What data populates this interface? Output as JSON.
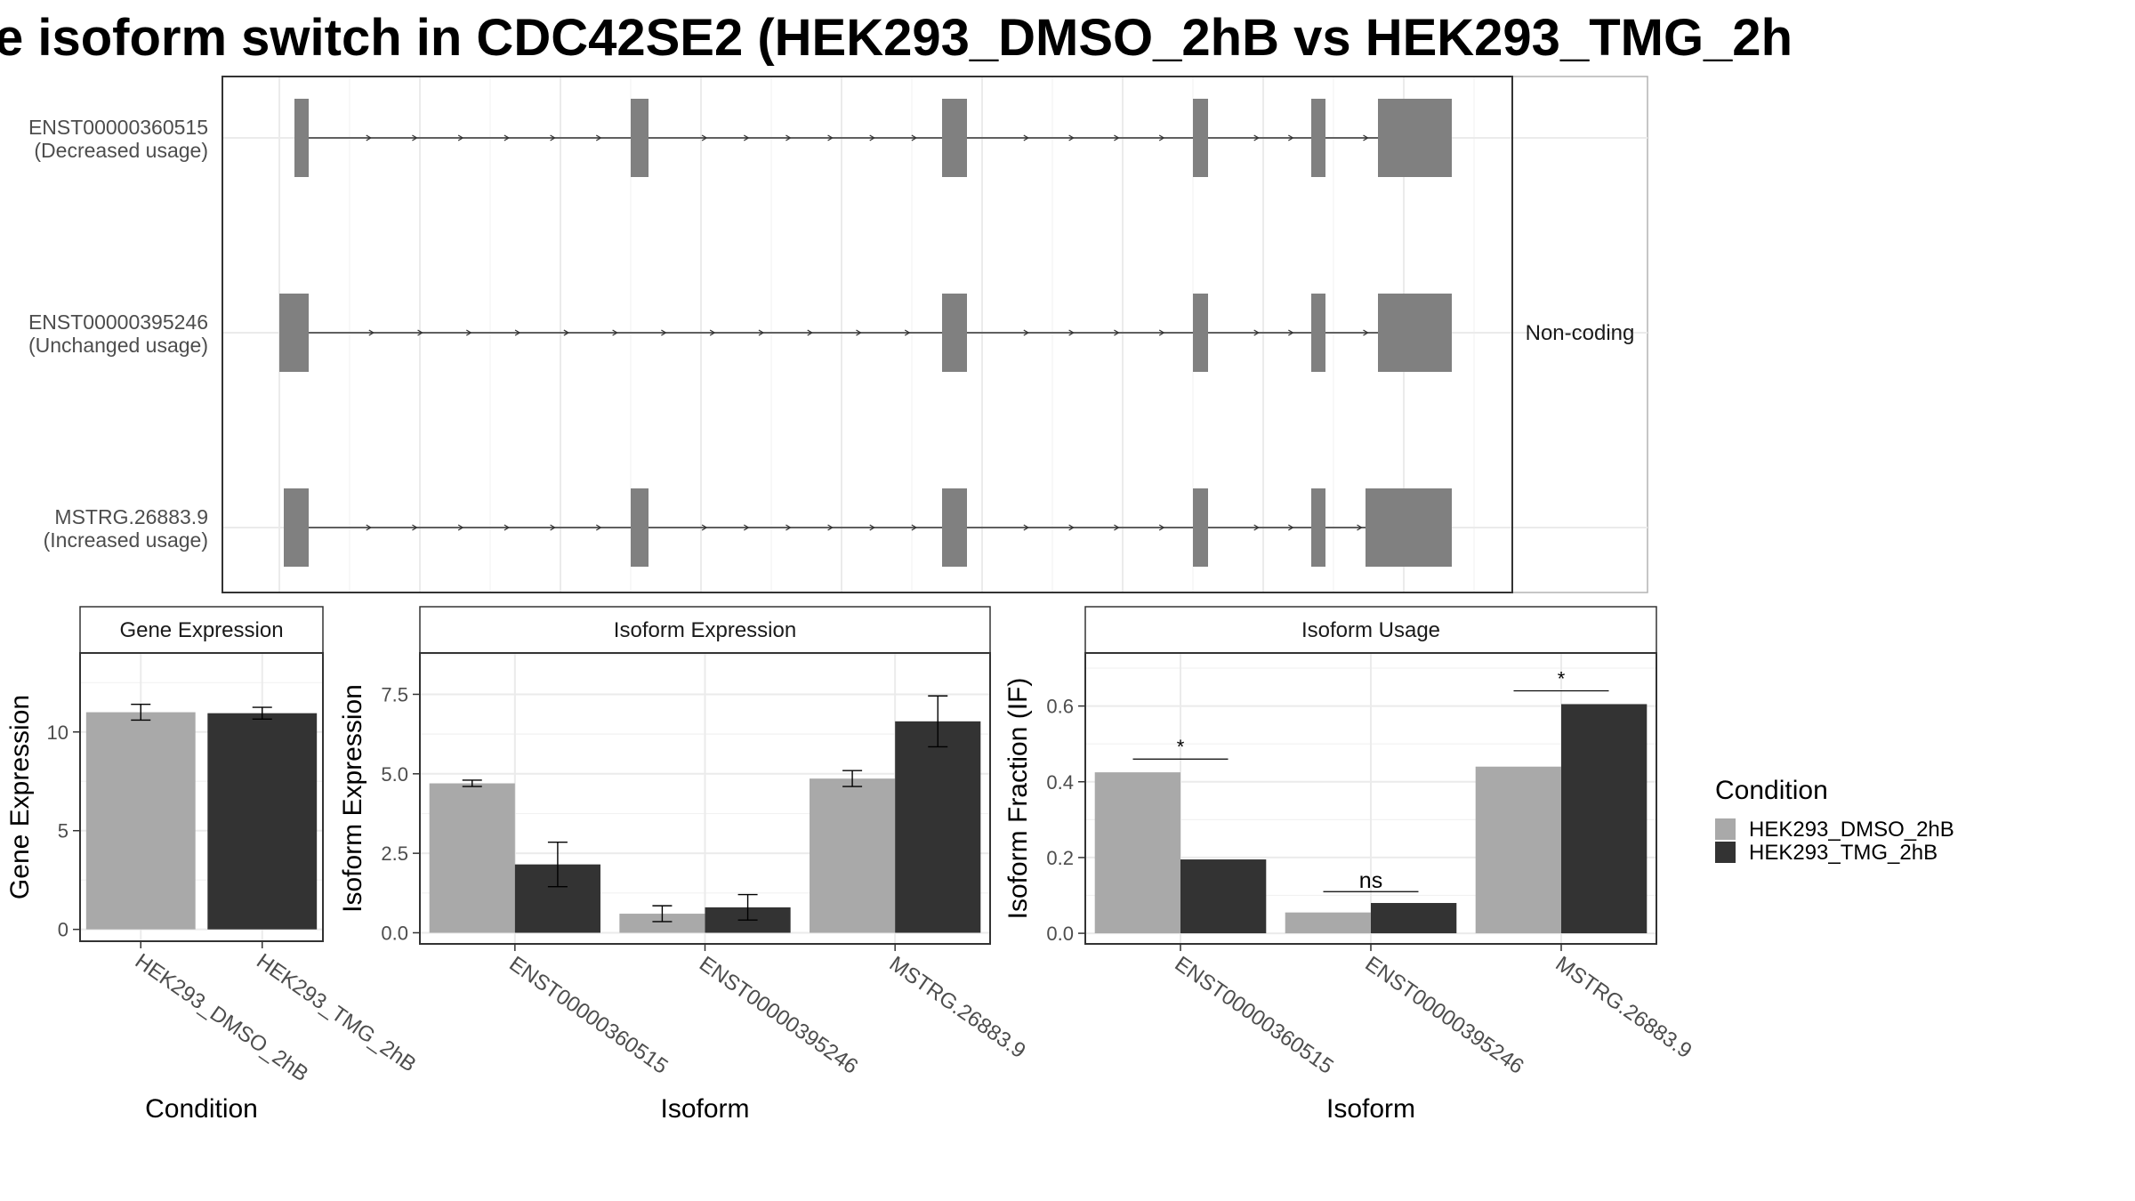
{
  "title": "e isoform switch in CDC42SE2 (HEK293_DMSO_2hB vs HEK293_TMG_2h",
  "colors": {
    "dmso": "#a9a9a9",
    "tmg": "#333333",
    "exon": "#808080",
    "grid": "#ebebeb",
    "panel_border": "#333333",
    "strip_border": "#333333"
  },
  "chart_data": [
    {
      "type": "gene_structure",
      "facet_label": "Non-coding",
      "transcripts": [
        {
          "id": "ENST00000360515",
          "label": "ENST00000360515",
          "usage": "(Decreased usage)",
          "exons": [
            "e1",
            "e2",
            "e3",
            "e4",
            "e5",
            "e6"
          ]
        },
        {
          "id": "ENST00000395246",
          "label": "ENST00000395246",
          "usage": "(Unchanged usage)",
          "exons": [
            "e1b",
            "e3",
            "e4",
            "e5",
            "e6"
          ]
        },
        {
          "id": "MSTRG.26883.9",
          "label": "MSTRG.26883.9",
          "usage": "(Increased usage)",
          "exons": [
            "e1c",
            "e2",
            "e3",
            "e4",
            "e5",
            "e6b"
          ]
        }
      ],
      "grid": true
    },
    {
      "type": "bar",
      "strip": "Gene Expression",
      "xlabel": "Condition",
      "ylabel": "Gene Expression",
      "categories": [
        "HEK293_DMSO_2hB",
        "HEK293_TMG_2hB"
      ],
      "yticks": [
        0,
        5,
        10
      ],
      "ylim": [
        -0.6,
        14.0
      ],
      "series": [
        {
          "name": "HEK293_DMSO_2hB",
          "values": [
            11.0,
            null
          ],
          "err": [
            0.4,
            null
          ]
        },
        {
          "name": "HEK293_TMG_2hB",
          "values": [
            null,
            10.95
          ],
          "err": [
            null,
            0.3
          ]
        }
      ]
    },
    {
      "type": "bar",
      "strip": "Isoform Expression",
      "xlabel": "Isoform",
      "ylabel": "Isoform Expression",
      "categories": [
        "ENST00000360515",
        "ENST00000395246",
        "MSTRG.26883.9"
      ],
      "yticks": [
        0.0,
        2.5,
        5.0,
        7.5
      ],
      "ytick_labels": [
        "0.0",
        "2.5",
        "5.0",
        "7.5"
      ],
      "ylim": [
        -0.35,
        8.8
      ],
      "series": [
        {
          "name": "HEK293_DMSO_2hB",
          "values": [
            4.7,
            0.6,
            4.85
          ],
          "err": [
            0.1,
            0.25,
            0.25
          ]
        },
        {
          "name": "HEK293_TMG_2hB",
          "values": [
            2.15,
            0.8,
            6.65
          ],
          "err": [
            0.7,
            0.4,
            0.8
          ]
        }
      ]
    },
    {
      "type": "bar",
      "strip": "Isoform Usage",
      "xlabel": "Isoform",
      "ylabel": "Isoform Fraction (IF)",
      "categories": [
        "ENST00000360515",
        "ENST00000395246",
        "MSTRG.26883.9"
      ],
      "yticks": [
        0.0,
        0.2,
        0.4,
        0.6
      ],
      "ytick_labels": [
        "0.0",
        "0.2",
        "0.4",
        "0.6"
      ],
      "ylim": [
        -0.028,
        0.74
      ],
      "series": [
        {
          "name": "HEK293_DMSO_2hB",
          "values": [
            0.425,
            0.055,
            0.44
          ]
        },
        {
          "name": "HEK293_TMG_2hB",
          "values": [
            0.195,
            0.08,
            0.605
          ]
        }
      ],
      "significance": [
        {
          "label": "*",
          "y": 0.46
        },
        {
          "label": "ns",
          "y": 0.11
        },
        {
          "label": "*",
          "y": 0.64
        }
      ]
    }
  ],
  "legend": {
    "title": "Condition",
    "entries": [
      "HEK293_DMSO_2hB",
      "HEK293_TMG_2hB"
    ]
  }
}
